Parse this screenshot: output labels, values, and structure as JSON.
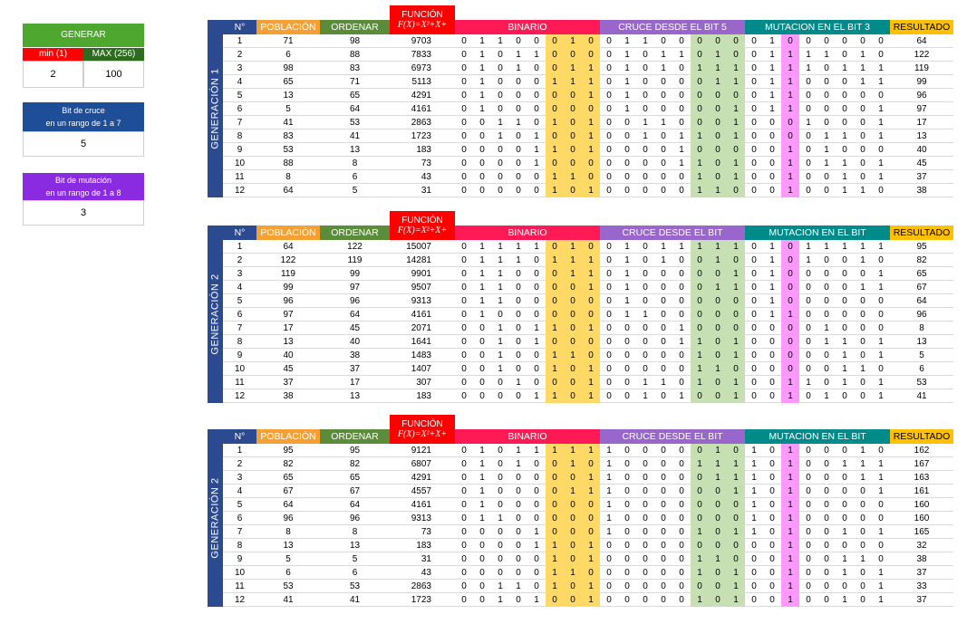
{
  "controls": {
    "generar_label": "GENERAR",
    "min_label": "min (1)",
    "max_label": "MAX (256)",
    "min_value": "2",
    "max_value": "100",
    "cruce_title_1": "Bit de cruce",
    "cruce_title_2": "en un rango de 1 a 7",
    "cruce_value": "5",
    "mutacion_title_1": "Bit de mutación",
    "mutacion_title_2": "en un rango de 1 a 8",
    "mutacion_value": "3"
  },
  "colors": {
    "green": "#4ea72e",
    "red": "#ff0000",
    "dark_green": "#2e6b1f",
    "blue": "#1f4e99",
    "purple": "#8a2be2",
    "navy": "#2b4a8f",
    "orange": "#f5a033",
    "olive": "#5b8c3a",
    "pinkred": "#ff1a55",
    "violet": "#9966cc",
    "teal": "#008b8b",
    "yellow": "#ffc000",
    "cell_yellow": "#ffd966",
    "cell_green": "#c6e0b4",
    "cell_pink": "#ff99ff"
  },
  "headers": {
    "n": "N°",
    "poblacion": "POBLACIÓN",
    "ordenar": "ORDENAR",
    "funcion": "FUNCIÓN",
    "formula": "F(X)=X²+X+",
    "formula_tail": "1",
    "binario": "BINARIO",
    "resultado": "RESULTADO"
  },
  "blocks": [
    {
      "label": "GENERACIÓN 1",
      "cruce_header": "CRUCE DESDE EL BIT 5",
      "mutacion_header": "MUTACION EN EL BIT 3",
      "rows": [
        {
          "n": "1",
          "pob": "71",
          "ord": "98",
          "f": "9703",
          "bin": "01100010",
          "cru": "01100000",
          "mut": "01000000",
          "res": "64"
        },
        {
          "n": "2",
          "pob": "6",
          "ord": "88",
          "f": "7833",
          "bin": "01011000",
          "cru": "01011010",
          "mut": "01111010",
          "res": "122"
        },
        {
          "n": "3",
          "pob": "98",
          "ord": "83",
          "f": "6973",
          "bin": "01010011",
          "cru": "01010111",
          "mut": "01110111",
          "res": "119"
        },
        {
          "n": "4",
          "pob": "65",
          "ord": "71",
          "f": "5113",
          "bin": "01000111",
          "cru": "01000011",
          "mut": "01100011",
          "res": "99"
        },
        {
          "n": "5",
          "pob": "13",
          "ord": "65",
          "f": "4291",
          "bin": "01000001",
          "cru": "01000000",
          "mut": "01100000",
          "res": "96"
        },
        {
          "n": "6",
          "pob": "5",
          "ord": "64",
          "f": "4161",
          "bin": "01000000",
          "cru": "01000001",
          "mut": "01100001",
          "res": "97"
        },
        {
          "n": "7",
          "pob": "41",
          "ord": "53",
          "f": "2863",
          "bin": "00110101",
          "cru": "00110001",
          "mut": "00010001",
          "res": "17"
        },
        {
          "n": "8",
          "pob": "83",
          "ord": "41",
          "f": "1723",
          "bin": "00101001",
          "cru": "00101101",
          "mut": "00001101",
          "res": "13"
        },
        {
          "n": "9",
          "pob": "53",
          "ord": "13",
          "f": "183",
          "bin": "00001101",
          "cru": "00001000",
          "mut": "00101000",
          "res": "40"
        },
        {
          "n": "10",
          "pob": "88",
          "ord": "8",
          "f": "73",
          "bin": "00001000",
          "cru": "00001101",
          "mut": "00101101",
          "res": "45"
        },
        {
          "n": "11",
          "pob": "8",
          "ord": "6",
          "f": "43",
          "bin": "00000110",
          "cru": "00000101",
          "mut": "00100101",
          "res": "37"
        },
        {
          "n": "12",
          "pob": "64",
          "ord": "5",
          "f": "31",
          "bin": "00000101",
          "cru": "00000110",
          "mut": "00100110",
          "res": "38"
        }
      ]
    },
    {
      "label": "GENERACIÓN 2",
      "cruce_header": "CRUCE DESDE EL BIT",
      "mutacion_header": "MUTACION EN EL BIT",
      "rows": [
        {
          "n": "1",
          "pob": "64",
          "ord": "122",
          "f": "15007",
          "bin": "01111010",
          "cru": "01011111",
          "mut": "01011111",
          "res": "95"
        },
        {
          "n": "2",
          "pob": "122",
          "ord": "119",
          "f": "14281",
          "bin": "01110111",
          "cru": "01010010",
          "mut": "01010010",
          "res": "82"
        },
        {
          "n": "3",
          "pob": "119",
          "ord": "99",
          "f": "9901",
          "bin": "01100011",
          "cru": "01000001",
          "mut": "01000001",
          "res": "65"
        },
        {
          "n": "4",
          "pob": "99",
          "ord": "97",
          "f": "9507",
          "bin": "01100001",
          "cru": "01000011",
          "mut": "01000011",
          "res": "67"
        },
        {
          "n": "5",
          "pob": "96",
          "ord": "96",
          "f": "9313",
          "bin": "01100000",
          "cru": "01000000",
          "mut": "01000000",
          "res": "64"
        },
        {
          "n": "6",
          "pob": "97",
          "ord": "64",
          "f": "4161",
          "bin": "01000000",
          "cru": "01100000",
          "mut": "01100000",
          "res": "96"
        },
        {
          "n": "7",
          "pob": "17",
          "ord": "45",
          "f": "2071",
          "bin": "00101101",
          "cru": "00001000",
          "mut": "00001000",
          "res": "8"
        },
        {
          "n": "8",
          "pob": "13",
          "ord": "40",
          "f": "1641",
          "bin": "00101000",
          "cru": "00001101",
          "mut": "00001101",
          "res": "13"
        },
        {
          "n": "9",
          "pob": "40",
          "ord": "38",
          "f": "1483",
          "bin": "00100110",
          "cru": "00000101",
          "mut": "00000101",
          "res": "5"
        },
        {
          "n": "10",
          "pob": "45",
          "ord": "37",
          "f": "1407",
          "bin": "00100101",
          "cru": "00000110",
          "mut": "00000110",
          "res": "6"
        },
        {
          "n": "11",
          "pob": "37",
          "ord": "17",
          "f": "307",
          "bin": "00010001",
          "cru": "00110101",
          "mut": "00110101",
          "res": "53"
        },
        {
          "n": "12",
          "pob": "38",
          "ord": "13",
          "f": "183",
          "bin": "00001101",
          "cru": "00101001",
          "mut": "00101001",
          "res": "41"
        }
      ]
    },
    {
      "label": "GENERACIÓN 2",
      "cruce_header": "CRUCE DESDE EL BIT",
      "mutacion_header": "MUTACION EN EL BIT",
      "rows": [
        {
          "n": "1",
          "pob": "95",
          "ord": "95",
          "f": "9121",
          "bin": "01011111",
          "cru": "10000010",
          "mut": "10100010",
          "res": "162"
        },
        {
          "n": "2",
          "pob": "82",
          "ord": "82",
          "f": "6807",
          "bin": "01010010",
          "cru": "10000111",
          "mut": "10100111",
          "res": "167"
        },
        {
          "n": "3",
          "pob": "65",
          "ord": "65",
          "f": "4291",
          "bin": "01000001",
          "cru": "10000011",
          "mut": "10100011",
          "res": "163"
        },
        {
          "n": "4",
          "pob": "67",
          "ord": "67",
          "f": "4557",
          "bin": "01000011",
          "cru": "10000001",
          "mut": "10100001",
          "res": "161"
        },
        {
          "n": "5",
          "pob": "64",
          "ord": "64",
          "f": "4161",
          "bin": "01000000",
          "cru": "10000000",
          "mut": "10100000",
          "res": "160"
        },
        {
          "n": "6",
          "pob": "96",
          "ord": "96",
          "f": "9313",
          "bin": "01100000",
          "cru": "10000000",
          "mut": "10100000",
          "res": "160"
        },
        {
          "n": "7",
          "pob": "8",
          "ord": "8",
          "f": "73",
          "bin": "00001000",
          "cru": "10000101",
          "mut": "10100101",
          "res": "165"
        },
        {
          "n": "8",
          "pob": "13",
          "ord": "13",
          "f": "183",
          "bin": "00001101",
          "cru": "00000000",
          "mut": "00100000",
          "res": "32"
        },
        {
          "n": "9",
          "pob": "5",
          "ord": "5",
          "f": "31",
          "bin": "00000101",
          "cru": "00000110",
          "mut": "00100110",
          "res": "38"
        },
        {
          "n": "10",
          "pob": "6",
          "ord": "6",
          "f": "43",
          "bin": "00000110",
          "cru": "00000101",
          "mut": "00100101",
          "res": "37"
        },
        {
          "n": "11",
          "pob": "53",
          "ord": "53",
          "f": "2863",
          "bin": "00110101",
          "cru": "00000001",
          "mut": "00100001",
          "res": "33"
        },
        {
          "n": "12",
          "pob": "41",
          "ord": "41",
          "f": "1723",
          "bin": "00101001",
          "cru": "00000101",
          "mut": "00100101",
          "res": "37"
        }
      ]
    }
  ]
}
